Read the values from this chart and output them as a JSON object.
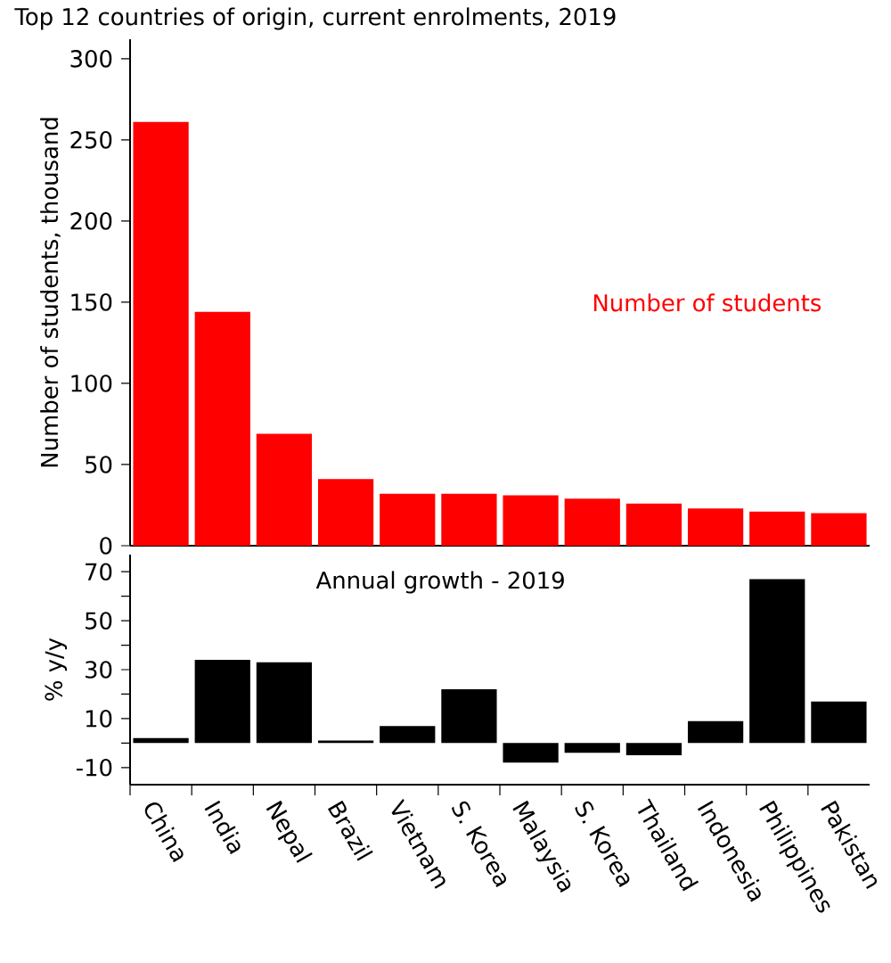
{
  "chart_data": [
    {
      "type": "bar",
      "title": "Top 12 countries of origin, current enrolments, 2019",
      "ylabel": "Number of students, thousand",
      "categories": [
        null,
        null,
        null,
        null,
        null,
        null,
        null,
        null,
        null,
        null,
        null,
        null
      ],
      "series": [
        {
          "name": "Number of students",
          "color": "#ff0000",
          "values": [
            261,
            144,
            69,
            41,
            32,
            32,
            31,
            29,
            26,
            23,
            21,
            20
          ]
        }
      ],
      "ylim": [
        0,
        312
      ],
      "yticks": [
        0,
        50,
        100,
        150,
        200,
        250,
        300
      ],
      "tick_labels": "y"
    },
    {
      "type": "bar",
      "ylabel": "% y/y",
      "categories": [
        "China",
        "India",
        "Nepal",
        "Brazil",
        "Vietnam",
        "S. Korea",
        "Malaysia",
        "S. Korea",
        "Thailand",
        "Indonesia",
        "Philippines",
        "Pakistan"
      ],
      "series": [
        {
          "name": "Annual growth - 2019",
          "color": "#000000",
          "values": [
            2,
            34,
            33,
            1,
            7,
            22,
            -8,
            -4,
            -5,
            9,
            67,
            17
          ]
        }
      ],
      "ylim": [
        -17,
        77
      ],
      "yticks": [
        -10,
        {
          "value": 0,
          "label": null
        },
        10,
        {
          "value": 20,
          "label": null
        },
        30,
        {
          "value": 40,
          "label": null
        },
        50,
        {
          "value": 60,
          "label": null
        },
        70
      ]
    }
  ]
}
